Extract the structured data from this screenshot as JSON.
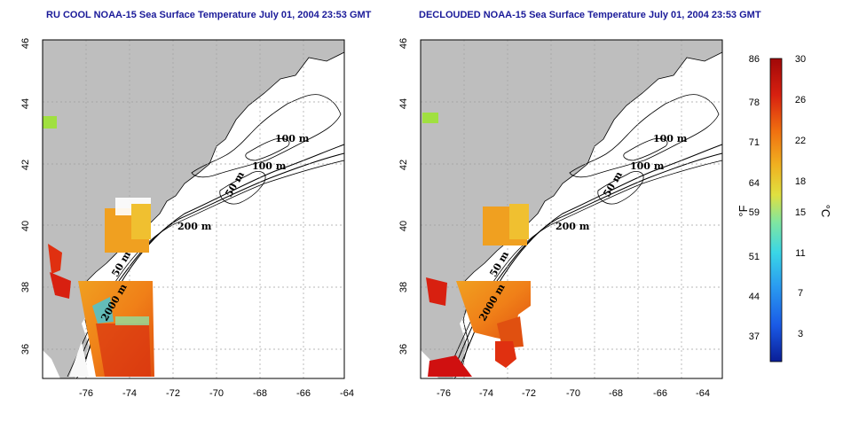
{
  "left_map": {
    "title": "RU COOL NOAA-15 Sea Surface Temperature July 01, 2004 23:53 GMT",
    "lon_ticks": [
      "-76",
      "-74",
      "-72",
      "-70",
      "-68",
      "-66",
      "-64"
    ],
    "lat_ticks": [
      "46",
      "44",
      "42",
      "40",
      "38",
      "36"
    ],
    "contour_labels": [
      "100 m",
      "100 m",
      "50 m",
      "200 m",
      "50 m",
      "2000 m"
    ]
  },
  "right_map": {
    "title": "DECLOUDED NOAA-15 Sea Surface Temperature July 01, 2004 23:53 GMT",
    "lon_ticks": [
      "-76",
      "-74",
      "-72",
      "-70",
      "-68",
      "-66",
      "-64"
    ],
    "lat_ticks": [
      "46",
      "44",
      "42",
      "40",
      "38",
      "36"
    ],
    "contour_labels": [
      "100 m",
      "100 m",
      "50 m",
      "200 m",
      "50 m",
      "2000 m"
    ]
  },
  "colorbar": {
    "fahrenheit_ticks": [
      "86",
      "78",
      "71",
      "64",
      "59",
      "51",
      "44",
      "37"
    ],
    "celsius_ticks": [
      "30",
      "26",
      "22",
      "18",
      "15",
      "11",
      "7",
      "3"
    ],
    "fahrenheit_unit": "°F",
    "celsius_unit": "°C",
    "colors": [
      "#0a1e96",
      "#1a5ae6",
      "#2a9cf0",
      "#3ad6e6",
      "#80e6a0",
      "#e0e040",
      "#f0b020",
      "#f07010",
      "#d82010",
      "#a00808"
    ]
  }
}
